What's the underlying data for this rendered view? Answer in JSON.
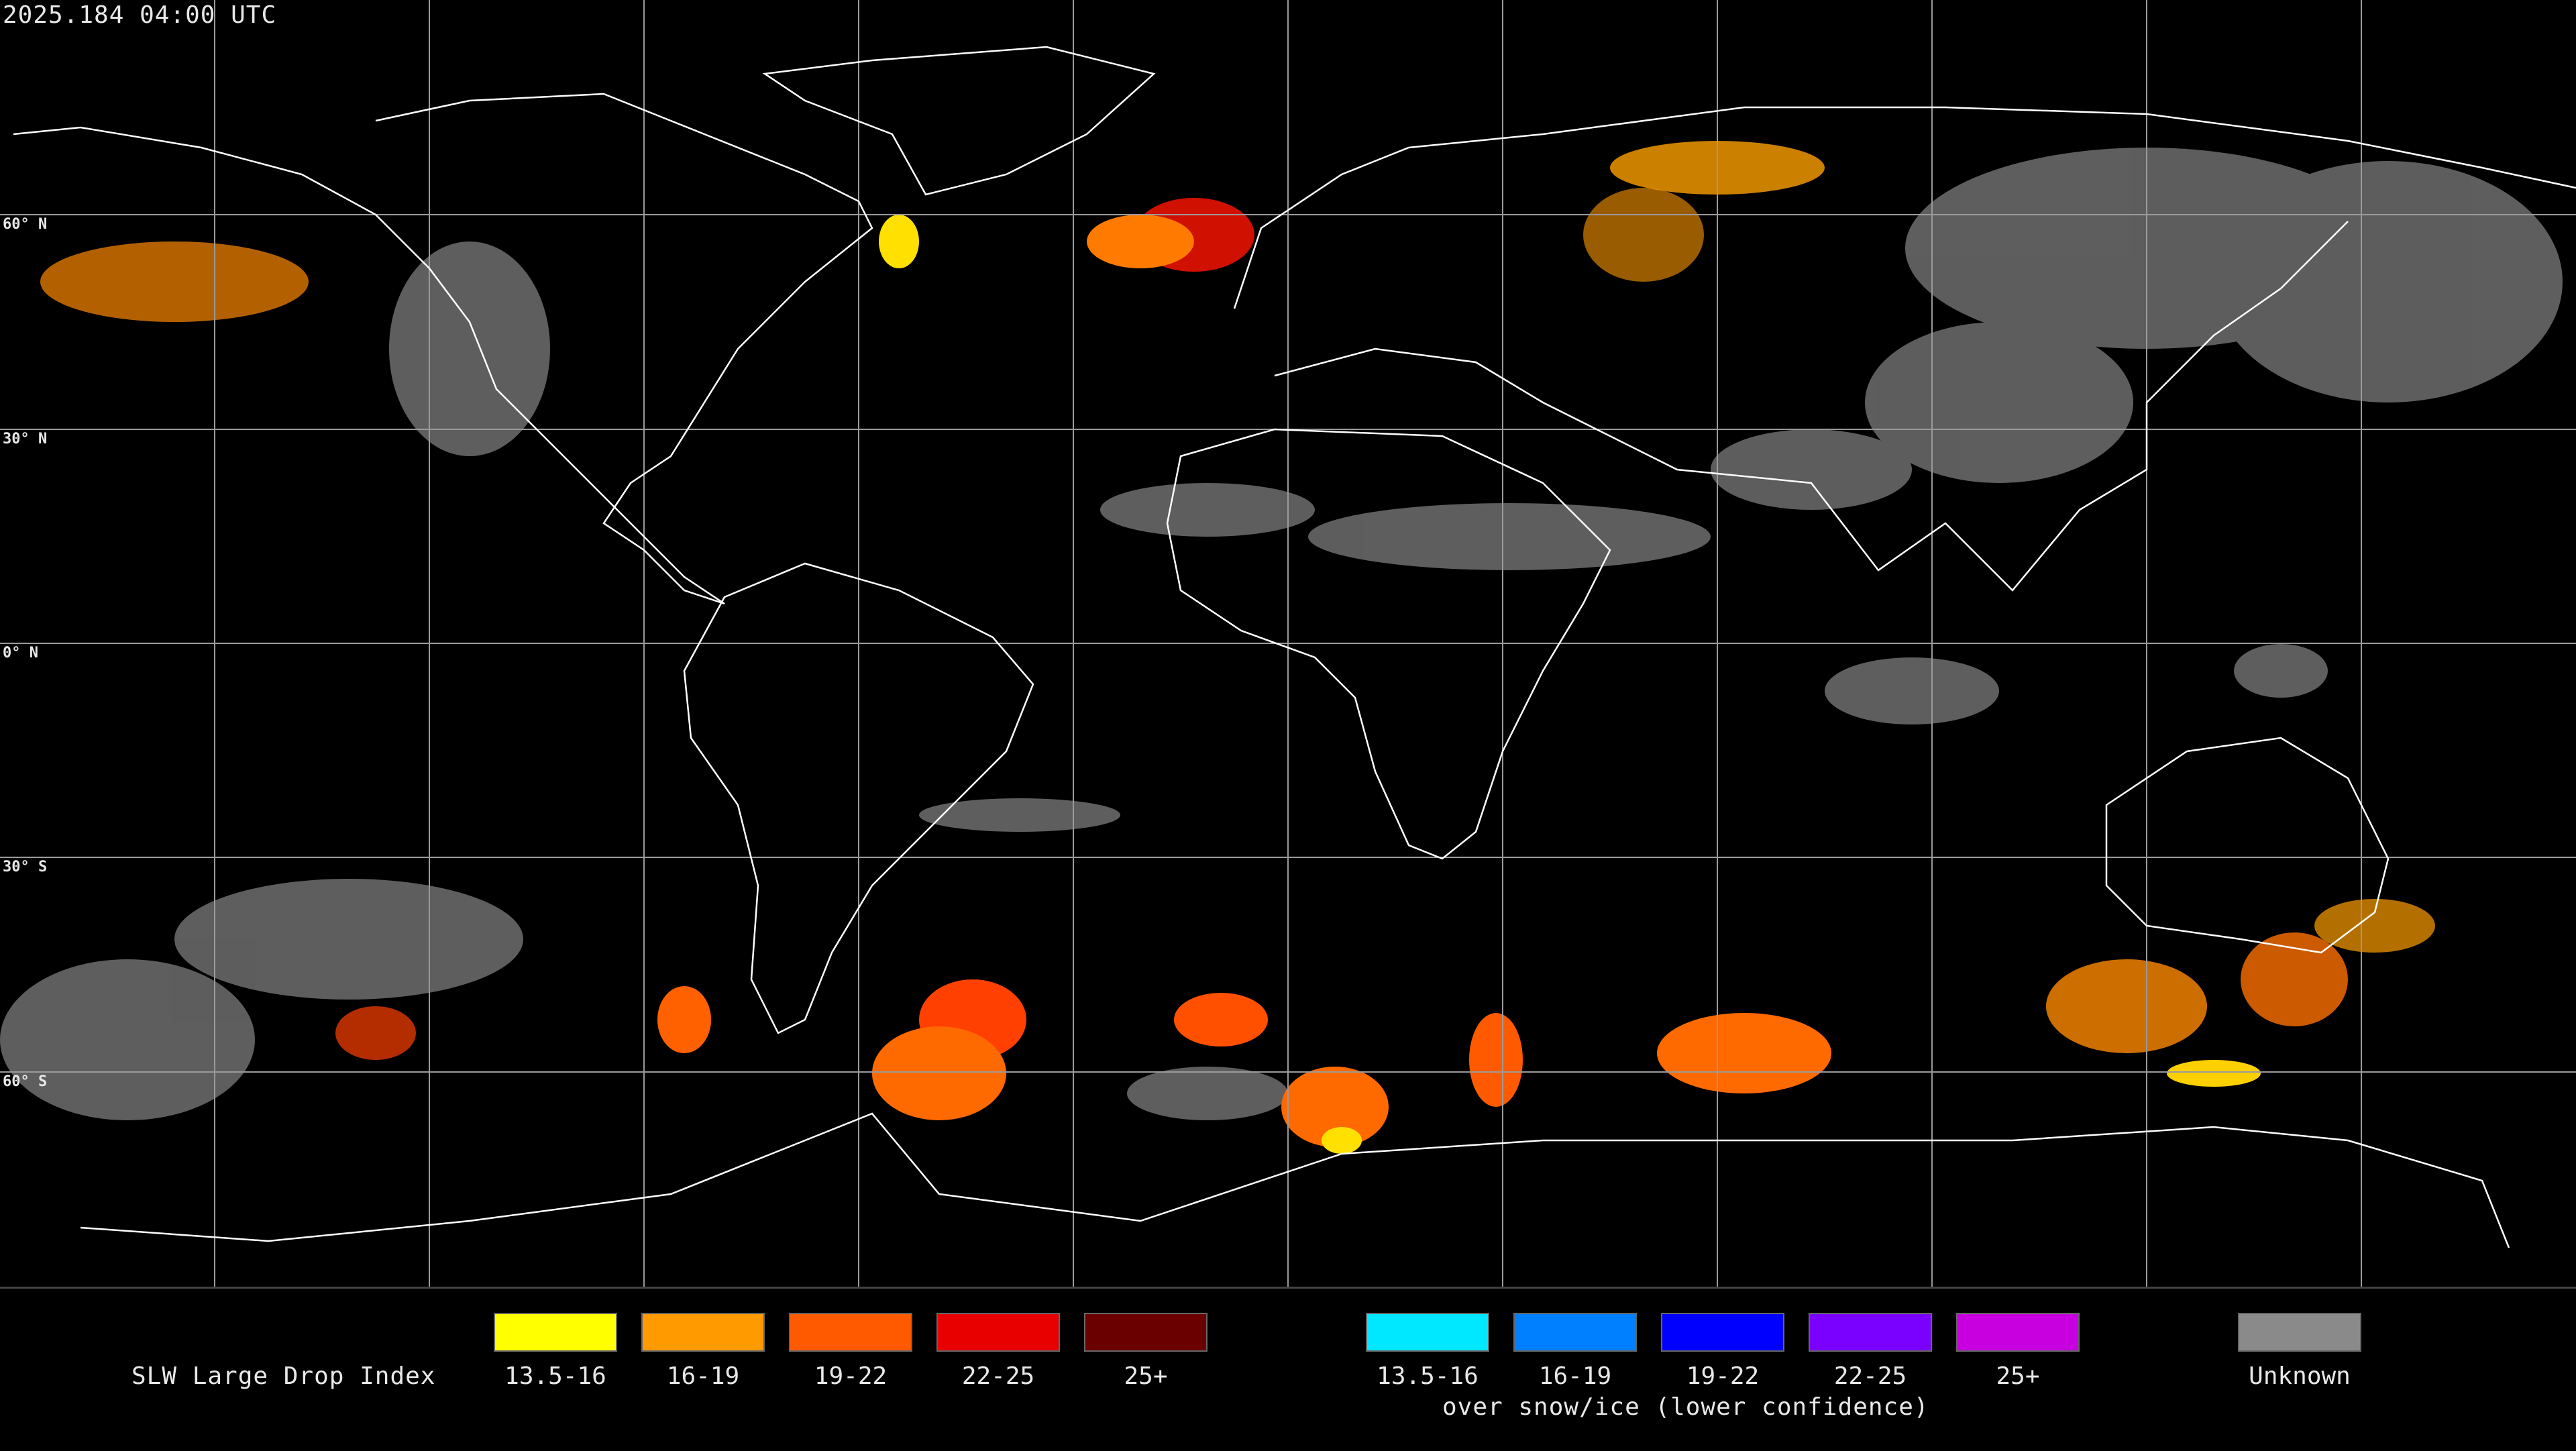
{
  "header": {
    "timestamp": "2025.184 04:00 UTC"
  },
  "latitude_labels": [
    "60° N",
    "30° N",
    "0° N",
    "30° S",
    "60° S"
  ],
  "legend": {
    "title": "SLW Large Drop Index",
    "liquid": [
      {
        "label": "13.5-16",
        "color": "#ffff00"
      },
      {
        "label": "16-19",
        "color": "#ff9a00"
      },
      {
        "label": "19-22",
        "color": "#ff5a00"
      },
      {
        "label": "22-25",
        "color": "#e80000"
      },
      {
        "label": "25+",
        "color": "#6a0000"
      }
    ],
    "snow_ice": [
      {
        "label": "13.5-16",
        "color": "#00e8ff"
      },
      {
        "label": "16-19",
        "color": "#0080ff"
      },
      {
        "label": "19-22",
        "color": "#0000ff"
      },
      {
        "label": "22-25",
        "color": "#7a00ff"
      },
      {
        "label": "25+",
        "color": "#c800e0"
      }
    ],
    "snow_ice_note": "over snow/ice (lower confidence)",
    "unknown": {
      "label": "Unknown",
      "color": "#8a8a8a"
    }
  }
}
